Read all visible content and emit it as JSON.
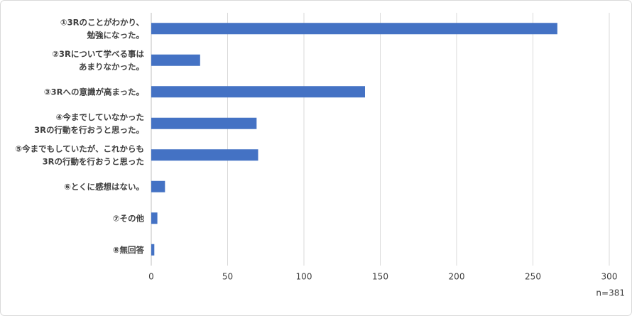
{
  "chart_data": {
    "type": "bar",
    "orientation": "horizontal",
    "categories": [
      [
        "①3Rのことがわかり、",
        "勉強になった。"
      ],
      [
        "②3Rについて学べる事は",
        "あまりなかった。"
      ],
      [
        "③3Rへの意識が高まった。"
      ],
      [
        "④今までしていなかった",
        "3Rの行動を行おうと思った。"
      ],
      [
        "⑤今までもしていたが、これからも",
        "3Rの行動を行おうと思った"
      ],
      [
        "⑥とくに感想はない。"
      ],
      [
        "⑦その他"
      ],
      [
        "⑧無回答"
      ]
    ],
    "values": [
      266,
      32,
      140,
      69,
      70,
      9,
      4,
      2
    ],
    "color": "#4472c4",
    "xlim": [
      0,
      300
    ],
    "xticks": [
      0,
      50,
      100,
      150,
      200,
      250,
      300
    ],
    "grid": true,
    "annotation": "n=381"
  }
}
